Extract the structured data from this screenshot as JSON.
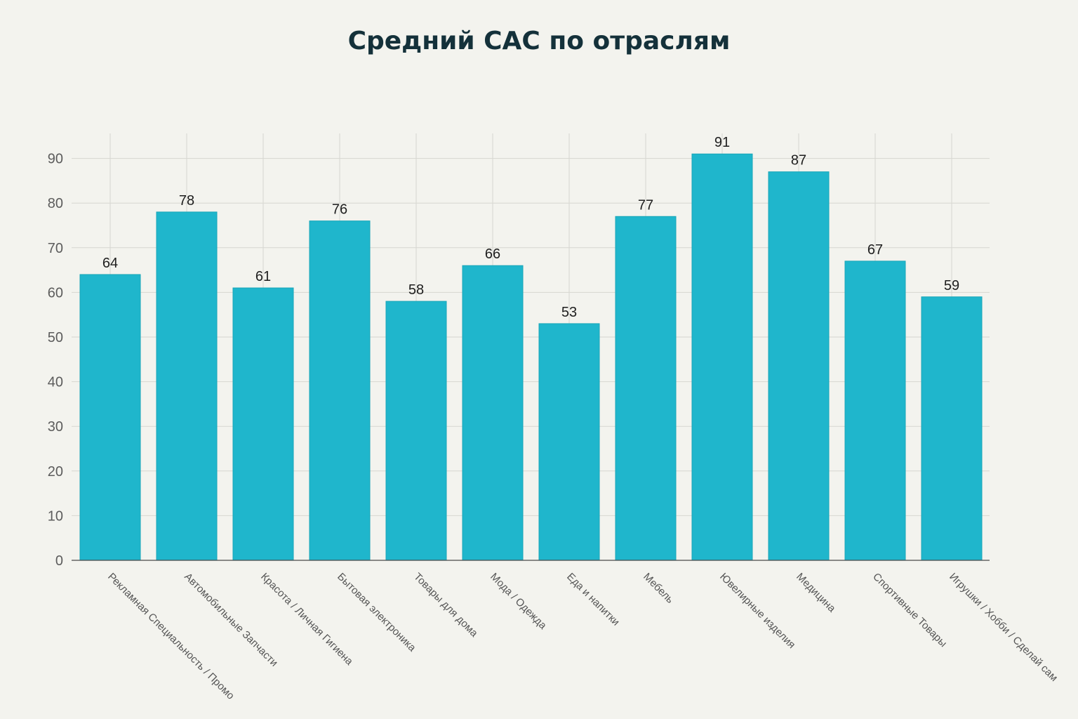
{
  "chart_data": {
    "type": "bar",
    "title": "Средний CAC по отраслям",
    "xlabel": "",
    "ylabel": "",
    "ylim": [
      0,
      95
    ],
    "yticks": [
      0,
      10,
      20,
      30,
      40,
      50,
      60,
      70,
      80,
      90
    ],
    "categories": [
      "Рекламная Специальность / Промо",
      "Автомобильные Запчасти",
      "Красота / Личная Гигиена",
      "Бытовая электроника",
      "Товары для дома",
      "Мода / Одежда",
      "Еда и напитки",
      "Мебель",
      "Ювелирные изделия",
      "Медицина",
      "Спортивные Товары",
      "Игрушки / Хобби / Сделай сам"
    ],
    "values": [
      64,
      78,
      61,
      76,
      58,
      66,
      53,
      77,
      91,
      87,
      67,
      59
    ],
    "bar_color": "#1fb6cc",
    "grid": true,
    "data_labels": true
  }
}
